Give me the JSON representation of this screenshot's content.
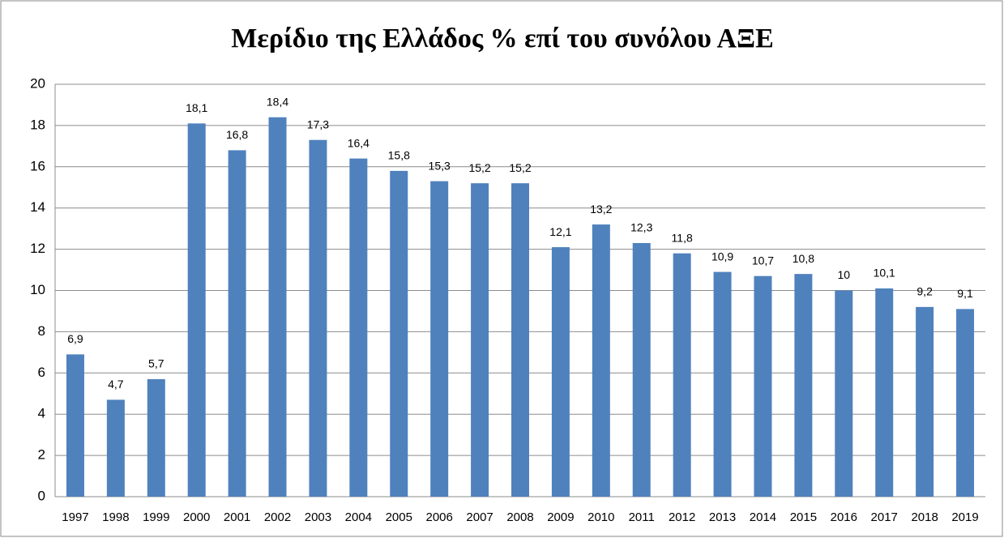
{
  "chart_data": {
    "type": "bar",
    "title": "Μερίδιο της Ελλάδος % επί του συνόλου ΑΞΕ",
    "categories": [
      "1997",
      "1998",
      "1999",
      "2000",
      "2001",
      "2002",
      "2003",
      "2004",
      "2005",
      "2006",
      "2007",
      "2008",
      "2009",
      "2010",
      "2011",
      "2012",
      "2013",
      "2014",
      "2015",
      "2016",
      "2017",
      "2018",
      "2019"
    ],
    "values": [
      6.9,
      4.7,
      5.7,
      18.1,
      16.8,
      18.4,
      17.3,
      16.4,
      15.8,
      15.3,
      15.2,
      15.2,
      12.1,
      13.2,
      12.3,
      11.8,
      10.9,
      10.7,
      10.8,
      10,
      10.1,
      9.2,
      9.1
    ],
    "value_labels": [
      "6,9",
      "4,7",
      "5,7",
      "18,1",
      "16,8",
      "18,4",
      "17,3",
      "16,4",
      "15,8",
      "15,3",
      "15,2",
      "15,2",
      "12,1",
      "13,2",
      "12,3",
      "11,8",
      "10,9",
      "10,7",
      "10,8",
      "10",
      "10,1",
      "9,2",
      "9,1"
    ],
    "color": "#4f81bd",
    "ylim": [
      0,
      20
    ],
    "yticks": [
      0,
      2,
      4,
      6,
      8,
      10,
      12,
      14,
      16,
      18,
      20
    ],
    "grid": true
  }
}
